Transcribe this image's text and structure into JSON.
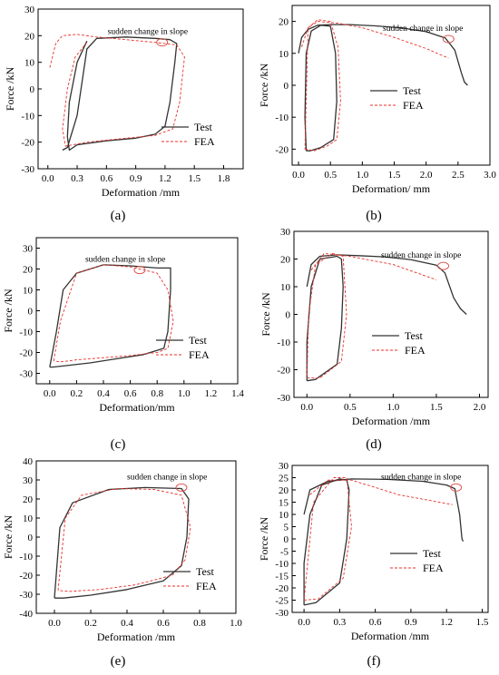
{
  "legend_labels": {
    "test": "Test",
    "fea": "FEA"
  },
  "colors": {
    "test": "#333333",
    "fea": "#e8322b",
    "annotation_ellipse": "#d9564f",
    "axis": "#000000"
  },
  "chart_data": [
    {
      "panel": "(a)",
      "type": "line",
      "xlabel": "Deformation /mm",
      "ylabel": "Force /kN",
      "xlim": [
        -0.1,
        2.0
      ],
      "ylim": [
        -30,
        30
      ],
      "xticks": [
        "0.0",
        "0.3",
        "0.6",
        "0.9",
        "1.2",
        "1.5",
        "1.8"
      ],
      "xtick_vals": [
        0,
        0.3,
        0.6,
        0.9,
        1.2,
        1.5,
        1.8
      ],
      "yticks": [
        "-30",
        "-20",
        "-10",
        "0",
        "10",
        "20",
        "30"
      ],
      "ytick_vals": [
        -30,
        -20,
        -10,
        0,
        10,
        20,
        30
      ],
      "annotation": "sudden change in slope",
      "annotation_point": [
        1.17,
        17.5
      ],
      "legend_position": "bottom-right",
      "series": [
        {
          "name": "Test",
          "style": "solid",
          "x": [
            0.15,
            0.2,
            0.3,
            0.4,
            0.5,
            0.8,
            1.1,
            1.25,
            1.32,
            1.3,
            1.25,
            1.2,
            1.1,
            0.9,
            0.6,
            0.3,
            0.22,
            0.2,
            0.22,
            0.3,
            0.4
          ],
          "y": [
            -23.0,
            -22.0,
            -10.0,
            15.0,
            19.0,
            19.5,
            19.0,
            18.5,
            17.0,
            10.0,
            -5.0,
            -14.0,
            -17.0,
            -18.5,
            -19.5,
            -21.0,
            -23.0,
            -18.0,
            -5.0,
            10.0,
            18.0
          ]
        },
        {
          "name": "FEA",
          "style": "dashed",
          "x": [
            0.02,
            0.08,
            0.15,
            0.3,
            0.5,
            0.8,
            1.1,
            1.32,
            1.4,
            1.35,
            1.28,
            1.1,
            0.8,
            0.4,
            0.18,
            0.15,
            0.2,
            0.28,
            0.4
          ],
          "y": [
            8.0,
            17.0,
            20.0,
            20.5,
            19.5,
            18.5,
            17.5,
            16.5,
            12.0,
            -5.0,
            -15.0,
            -17.5,
            -18.5,
            -20.0,
            -21.5,
            -15.0,
            0.0,
            12.0,
            17.5
          ]
        }
      ]
    },
    {
      "panel": "(b)",
      "type": "line",
      "xlabel": "Deformation/ mm",
      "ylabel": "Force /kN",
      "xlim": [
        -0.1,
        3.0
      ],
      "ylim": [
        -25,
        25
      ],
      "xticks": [
        "0.0",
        "0.5",
        "1.0",
        "1.5",
        "2.0",
        "2.5",
        "3.0"
      ],
      "xtick_vals": [
        0,
        0.5,
        1.0,
        1.5,
        2.0,
        2.5,
        3.0
      ],
      "yticks": [
        "-20",
        "-10",
        "0",
        "10",
        "20"
      ],
      "ytick_vals": [
        -20,
        -10,
        0,
        10,
        20
      ],
      "annotation": "sudden change in slope",
      "annotation_point": [
        2.35,
        14.5
      ],
      "legend_position": "center-right",
      "series": [
        {
          "name": "Test",
          "style": "solid",
          "x": [
            0.0,
            0.05,
            0.15,
            0.3,
            0.5,
            0.8,
            1.2,
            1.6,
            2.0,
            2.3,
            2.45,
            2.55,
            2.6,
            2.65
          ],
          "y": [
            10.0,
            15.0,
            17.5,
            18.8,
            19.0,
            19.0,
            18.6,
            18.0,
            16.8,
            14.8,
            11.0,
            4.0,
            1.0,
            0.0
          ]
        },
        {
          "name": "Test",
          "style": "solid",
          "x": [
            0.12,
            0.18,
            0.35,
            0.55,
            0.6,
            0.58,
            0.5,
            0.35,
            0.2,
            0.12,
            0.1,
            0.12
          ],
          "y": [
            -20.5,
            -20.5,
            -19.5,
            -17.0,
            -5.0,
            10.0,
            18.5,
            18.8,
            17.0,
            10.0,
            -10.0,
            -20.5
          ]
        },
        {
          "name": "FEA",
          "style": "dashed",
          "x": [
            0.05,
            0.15,
            0.3,
            0.6,
            1.0,
            1.5,
            2.0,
            2.35
          ],
          "y": [
            12.0,
            18.0,
            20.0,
            19.5,
            18.0,
            15.0,
            11.5,
            8.5
          ]
        },
        {
          "name": "FEA",
          "style": "dashed",
          "x": [
            0.1,
            0.25,
            0.45,
            0.6,
            0.66,
            0.62,
            0.5,
            0.3,
            0.15,
            0.1
          ],
          "y": [
            -20.0,
            -20.5,
            -19.0,
            -17.0,
            -5.0,
            12.0,
            20.0,
            20.5,
            18.0,
            -20.0
          ]
        }
      ]
    },
    {
      "panel": "(c)",
      "type": "line",
      "xlabel": "Deformation/mm",
      "ylabel": "Force /kN",
      "xlim": [
        -0.1,
        1.4
      ],
      "ylim": [
        -35,
        35
      ],
      "xticks": [
        "0.0",
        "0.2",
        "0.4",
        "0.6",
        "0.8",
        "1.0",
        "1.2",
        "1.4"
      ],
      "xtick_vals": [
        0,
        0.2,
        0.4,
        0.6,
        0.8,
        1.0,
        1.2,
        1.4
      ],
      "yticks": [
        "-30",
        "-20",
        "-10",
        "0",
        "10",
        "20",
        "30"
      ],
      "ytick_vals": [
        -30,
        -20,
        -10,
        0,
        10,
        20,
        30
      ],
      "annotation": "sudden change in slope",
      "annotation_point": [
        0.67,
        19.5
      ],
      "legend_position": "bottom-right",
      "series": [
        {
          "name": "Test",
          "style": "solid",
          "x": [
            0.0,
            0.05,
            0.1,
            0.2,
            0.4,
            0.6,
            0.8,
            0.9,
            0.9,
            0.88,
            0.85,
            0.7,
            0.5,
            0.3,
            0.1,
            0.02,
            0.0
          ],
          "y": [
            -27.0,
            -10.0,
            10.0,
            18.0,
            22.0,
            21.5,
            20.5,
            20.5,
            10.0,
            -10.0,
            -18.0,
            -21.0,
            -23.0,
            -25.0,
            -26.5,
            -27.0,
            -27.0
          ]
        },
        {
          "name": "FEA",
          "style": "dashed",
          "x": [
            0.03,
            0.08,
            0.2,
            0.4,
            0.6,
            0.8,
            0.88,
            0.92,
            0.88,
            0.8,
            0.6,
            0.4,
            0.2,
            0.08,
            0.03
          ],
          "y": [
            -24.0,
            -5.0,
            18.0,
            22.0,
            21.0,
            18.0,
            10.0,
            -5.0,
            -18.0,
            -20.0,
            -21.5,
            -22.5,
            -23.5,
            -24.5,
            -24.0
          ]
        }
      ]
    },
    {
      "panel": "(d)",
      "type": "line",
      "xlabel": "Deformation /mm",
      "ylabel": "Force /kN",
      "xlim": [
        -0.15,
        2.1
      ],
      "ylim": [
        -30,
        30
      ],
      "xticks": [
        "0.0",
        "0.5",
        "1.0",
        "1.5",
        "2.0"
      ],
      "xtick_vals": [
        0,
        0.5,
        1.0,
        1.5,
        2.0
      ],
      "yticks": [
        "-30",
        "-20",
        "-10",
        "0",
        "10",
        "20",
        "30"
      ],
      "ytick_vals": [
        -30,
        -20,
        -10,
        0,
        10,
        20,
        30
      ],
      "annotation": "sudden change in slope",
      "annotation_point": [
        1.58,
        17.5
      ],
      "legend_position": "bottom-right",
      "series": [
        {
          "name": "Test",
          "style": "solid",
          "x": [
            0.0,
            0.05,
            0.15,
            0.35,
            0.6,
            0.9,
            1.2,
            1.5,
            1.6,
            1.7,
            1.78,
            1.85
          ],
          "y": [
            10.0,
            18.0,
            21.0,
            21.5,
            21.2,
            20.8,
            19.8,
            17.8,
            15.0,
            6.0,
            2.0,
            0.0
          ]
        },
        {
          "name": "Test",
          "style": "solid",
          "x": [
            0.0,
            0.1,
            0.35,
            0.4,
            0.42,
            0.4,
            0.35,
            0.15,
            0.05,
            0.0,
            0.0
          ],
          "y": [
            -24.0,
            -23.5,
            -18.0,
            -5.0,
            10.0,
            20.0,
            21.0,
            20.0,
            10.0,
            -10.0,
            -24.0
          ]
        },
        {
          "name": "FEA",
          "style": "dashed",
          "x": [
            0.05,
            0.2,
            0.5,
            1.0,
            1.5
          ],
          "y": [
            16.0,
            22.0,
            21.0,
            18.0,
            12.5
          ]
        },
        {
          "name": "FEA",
          "style": "dashed",
          "x": [
            0.0,
            0.15,
            0.4,
            0.46,
            0.42,
            0.3,
            0.1,
            0.02,
            0.0
          ],
          "y": [
            -23.0,
            -23.0,
            -17.0,
            0.0,
            21.0,
            22.0,
            18.0,
            0.0,
            -23.0
          ]
        }
      ]
    },
    {
      "panel": "(e)",
      "type": "line",
      "xlabel": "Deformation /mm",
      "ylabel": "Force /kN",
      "xlim": [
        -0.1,
        1.0
      ],
      "ylim": [
        -40,
        40
      ],
      "xticks": [
        "0.0",
        "0.2",
        "0.4",
        "0.6",
        "0.8",
        "1.0"
      ],
      "xtick_vals": [
        0,
        0.2,
        0.4,
        0.6,
        0.8,
        1.0
      ],
      "yticks": [
        "-40",
        "-30",
        "-20",
        "-10",
        "0",
        "10",
        "20",
        "30",
        "40"
      ],
      "ytick_vals": [
        -40,
        -30,
        -20,
        -10,
        0,
        10,
        20,
        30,
        40
      ],
      "annotation": "sudden change in slope",
      "annotation_point": [
        0.7,
        26.0
      ],
      "legend_position": "bottom-right",
      "series": [
        {
          "name": "Test",
          "style": "solid",
          "x": [
            0.0,
            0.03,
            0.1,
            0.3,
            0.5,
            0.7,
            0.74,
            0.73,
            0.7,
            0.6,
            0.4,
            0.2,
            0.05,
            0.0
          ],
          "y": [
            -32.0,
            5.0,
            18.0,
            25.0,
            26.0,
            25.5,
            20.0,
            0.0,
            -15.0,
            -23.0,
            -27.5,
            -30.5,
            -32.0,
            -32.0
          ]
        },
        {
          "name": "FEA",
          "style": "dashed",
          "x": [
            0.02,
            0.06,
            0.15,
            0.35,
            0.55,
            0.7,
            0.75,
            0.72,
            0.65,
            0.45,
            0.25,
            0.08,
            0.02
          ],
          "y": [
            -28.0,
            10.0,
            22.0,
            25.5,
            25.0,
            22.0,
            5.0,
            -12.0,
            -20.0,
            -25.0,
            -27.5,
            -28.5,
            -28.0
          ]
        }
      ]
    },
    {
      "panel": "(f)",
      "type": "line",
      "xlabel": "Deformation /mm",
      "ylabel": "Force /kN",
      "xlim": [
        -0.1,
        1.55
      ],
      "ylim": [
        -30,
        30
      ],
      "xticks": [
        "0.0",
        "0.3",
        "0.6",
        "0.9",
        "1.2",
        "1.5"
      ],
      "xtick_vals": [
        0,
        0.3,
        0.6,
        0.9,
        1.2,
        1.5
      ],
      "yticks": [
        "-30",
        "-25",
        "-20",
        "-15",
        "-10",
        "-5",
        "0",
        "5",
        "10",
        "15",
        "20",
        "25",
        "30"
      ],
      "ytick_vals": [
        -30,
        -25,
        -20,
        -15,
        -10,
        -5,
        0,
        5,
        10,
        15,
        20,
        25,
        30
      ],
      "annotation": "sudden change in slope",
      "annotation_point": [
        1.28,
        21.0
      ],
      "legend_position": "bottom-right",
      "series": [
        {
          "name": "Test",
          "style": "solid",
          "x": [
            0.0,
            0.05,
            0.2,
            0.4,
            0.7,
            1.0,
            1.2,
            1.27,
            1.31,
            1.33,
            1.34
          ],
          "y": [
            10.0,
            20.0,
            23.5,
            24.5,
            24.3,
            23.5,
            22.0,
            20.5,
            10.0,
            0.0,
            -1.0
          ]
        },
        {
          "name": "Test",
          "style": "solid",
          "x": [
            0.0,
            0.1,
            0.3,
            0.36,
            0.38,
            0.36,
            0.3,
            0.15,
            0.05,
            0.0,
            0.0
          ],
          "y": [
            -27.0,
            -26.0,
            -18.0,
            0.0,
            20.0,
            24.0,
            24.5,
            22.0,
            10.0,
            -10.0,
            -27.0
          ]
        },
        {
          "name": "FEA",
          "style": "dashed",
          "x": [
            0.05,
            0.2,
            0.4,
            0.8,
            1.25
          ],
          "y": [
            18.0,
            24.0,
            24.0,
            18.0,
            14.0
          ]
        },
        {
          "name": "FEA",
          "style": "dashed",
          "x": [
            0.0,
            0.12,
            0.33,
            0.4,
            0.36,
            0.25,
            0.08,
            0.0
          ],
          "y": [
            -25.0,
            -24.5,
            -16.0,
            5.0,
            25.0,
            25.0,
            15.0,
            -25.0
          ]
        }
      ]
    }
  ]
}
